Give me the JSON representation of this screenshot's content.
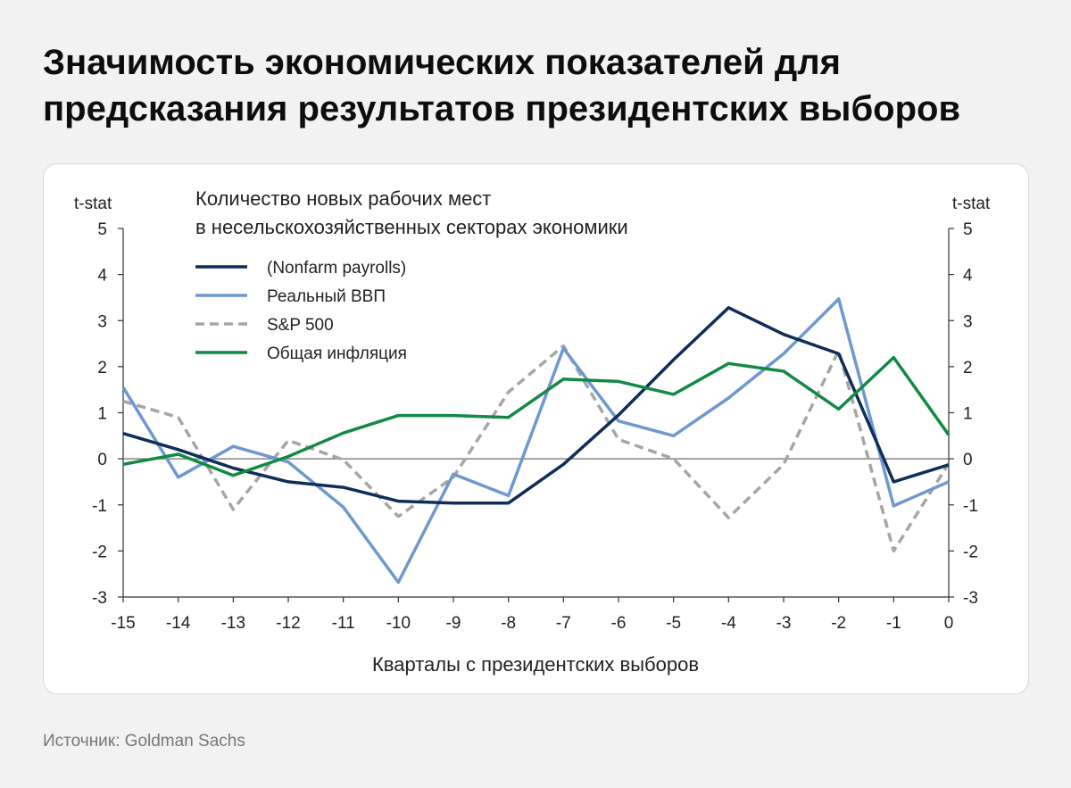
{
  "page": {
    "title": "Значимость экономических показателей для предсказания результатов президентских выборов",
    "source": "Источник: Goldman Sachs"
  },
  "chart_data": {
    "type": "line",
    "title": "Количество новых рабочих мест в несельскохозяйственных секторах экономики",
    "title_lines": [
      "Количество новых рабочих мест",
      "в несельскохозяйственных секторах экономики"
    ],
    "xlabel": "Кварталы с президентских выборов",
    "ylabel_left": "t-stat",
    "ylabel_right": "t-stat",
    "x": [
      -15,
      -14,
      -13,
      -12,
      -11,
      -10,
      -9,
      -8,
      -7,
      -6,
      -5,
      -4,
      -3,
      -2,
      -1,
      0
    ],
    "xlim": [
      -15,
      0
    ],
    "ylim": [
      -3,
      5
    ],
    "yticks": [
      -3,
      -2,
      -1,
      0,
      1,
      2,
      3,
      4,
      5
    ],
    "grid": false,
    "zero_line": true,
    "legend_position": "top-left",
    "series": [
      {
        "name": "(Nonfarm payrolls)",
        "color": "#0f2d59",
        "dash": "solid",
        "values": [
          0.55,
          0.2,
          -0.2,
          -0.5,
          -0.62,
          -0.92,
          -0.96,
          -0.96,
          -0.12,
          0.95,
          2.15,
          3.28,
          2.7,
          2.28,
          -0.5,
          -0.13
        ]
      },
      {
        "name": "Реальный ВВП",
        "color": "#6e98cf",
        "dash": "solid",
        "values": [
          1.55,
          -0.4,
          0.27,
          -0.07,
          -1.05,
          -2.68,
          -0.33,
          -0.8,
          2.4,
          0.82,
          0.5,
          1.32,
          2.28,
          3.47,
          -1.02,
          -0.5
        ]
      },
      {
        "name": "S&P 500",
        "color": "#a6a6a6",
        "dash": "dashed",
        "values": [
          1.25,
          0.9,
          -1.1,
          0.4,
          -0.02,
          -1.25,
          -0.4,
          1.45,
          2.45,
          0.42,
          0.0,
          -1.28,
          -0.12,
          2.35,
          -2.0,
          -0.1
        ]
      },
      {
        "name": "Общая инфляция",
        "color": "#128a43",
        "dash": "solid",
        "values": [
          -0.12,
          0.1,
          -0.36,
          0.05,
          0.56,
          0.94,
          0.94,
          0.9,
          1.73,
          1.68,
          1.4,
          2.07,
          1.9,
          1.08,
          2.2,
          0.52
        ]
      }
    ]
  }
}
